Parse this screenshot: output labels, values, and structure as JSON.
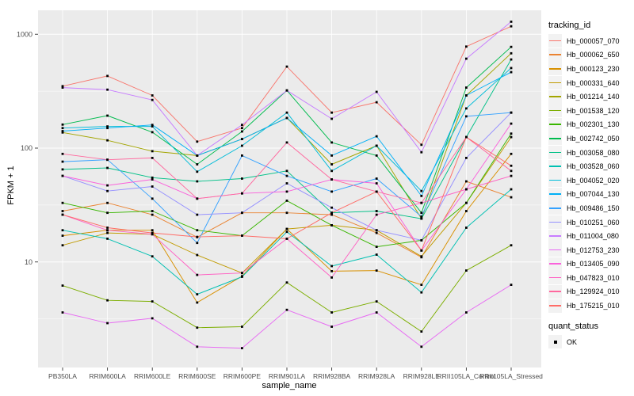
{
  "chart_data": {
    "type": "line",
    "title": "",
    "xlabel": "sample_name",
    "ylabel": "FPKM + 1",
    "y_scale": "log10",
    "y_ticks": [
      10,
      100,
      1000
    ],
    "y_minor_ticks": [
      3.162,
      31.62,
      316.2
    ],
    "ylim": [
      1.15,
      1650
    ],
    "grid": true,
    "legend_position": "right",
    "point_marker": "black-square",
    "categories": [
      "PB350LA",
      "RRIM600LA",
      "RRIM600LE",
      "RRIM600SE",
      "RRIM600PE",
      "RRIM901LA",
      "RRIM928BA",
      "RRIM928LA",
      "RRIM928LE",
      "RRII105LA_Control",
      "RRII105LA_Stressed"
    ],
    "series": [
      {
        "name": "Hb_000057_070",
        "color": "#F8766D",
        "values": [
          350,
          430,
          290,
          114,
          150,
          520,
          205,
          253,
          107,
          780,
          1175
        ]
      },
      {
        "name": "Hb_000062_650",
        "color": "#EA8331",
        "values": [
          28,
          33,
          26,
          16.5,
          27,
          27,
          26,
          18,
          11,
          51,
          37
        ]
      },
      {
        "name": "Hb_000123_230",
        "color": "#D89000",
        "values": [
          17,
          19,
          19,
          4.4,
          7.5,
          19.5,
          8.3,
          8.4,
          6.3,
          28,
          89
        ]
      },
      {
        "name": "Hb_000331_640",
        "color": "#C09B00",
        "values": [
          14,
          18,
          17.5,
          11.5,
          8,
          19.5,
          21,
          19,
          11.2,
          33,
          125
        ]
      },
      {
        "name": "Hb_001214_140",
        "color": "#A3A500",
        "values": [
          137,
          117,
          94,
          86,
          120,
          184,
          72,
          105,
          24,
          290,
          680
        ]
      },
      {
        "name": "Hb_001538_120",
        "color": "#7CAE00",
        "values": [
          6.2,
          4.6,
          4.5,
          2.65,
          2.7,
          6.6,
          3.6,
          4.5,
          2.45,
          8.4,
          14
        ]
      },
      {
        "name": "Hb_002301_130",
        "color": "#39B600",
        "values": [
          33,
          27,
          28,
          19,
          17,
          34.5,
          21,
          13.6,
          15.5,
          33,
          134
        ]
      },
      {
        "name": "Hb_002742_050",
        "color": "#00BB4E",
        "values": [
          161,
          193,
          138,
          72,
          140,
          321,
          112,
          86,
          27,
          340,
          775
        ]
      },
      {
        "name": "Hb_003058_080",
        "color": "#00C087",
        "values": [
          65,
          67,
          55,
          51,
          54,
          63,
          27,
          28,
          24,
          125,
          600
        ]
      },
      {
        "name": "Hb_003528_060",
        "color": "#00C0B2",
        "values": [
          19,
          16,
          11.2,
          5.2,
          7.4,
          18.4,
          9.2,
          11.6,
          5.4,
          20,
          43.5
        ]
      },
      {
        "name": "Hb_004052_020",
        "color": "#00BCD8",
        "values": [
          150,
          155,
          155,
          62,
          105,
          205,
          63,
          105,
          42,
          223,
          505
        ]
      },
      {
        "name": "Hb_007044_130",
        "color": "#00B0F6",
        "values": [
          141,
          150,
          160,
          86,
          120,
          184,
          86,
          127,
          38,
          290,
          465
        ]
      },
      {
        "name": "Hb_009486_150",
        "color": "#35A2FF",
        "values": [
          76,
          79,
          36,
          14.7,
          86,
          57,
          41.5,
          54,
          25,
          190,
          205
        ]
      },
      {
        "name": "Hb_010251_060",
        "color": "#9590FF",
        "values": [
          57,
          42,
          46,
          26,
          27,
          49,
          30,
          19,
          15.5,
          82,
          205
        ]
      },
      {
        "name": "Hb_011004_080",
        "color": "#C77CFF",
        "values": [
          340,
          326,
          265,
          86,
          160,
          321,
          181,
          312,
          92,
          610,
          1290
        ]
      },
      {
        "name": "Hb_012753_230",
        "color": "#E76BF3",
        "values": [
          3.6,
          2.9,
          3.2,
          1.8,
          1.75,
          3.8,
          2.7,
          3.6,
          1.8,
          3.6,
          6.3
        ]
      },
      {
        "name": "Hb_013405_090",
        "color": "#FA62DB",
        "values": [
          57,
          47,
          53,
          36,
          40,
          41.5,
          53,
          49,
          12.6,
          43.5,
          164
        ]
      },
      {
        "name": "Hb_047823_010",
        "color": "#FF61C3",
        "values": [
          26,
          19,
          17.5,
          7.7,
          8,
          16,
          7.3,
          26,
          33,
          43.5,
          57
        ]
      },
      {
        "name": "Hb_129924_010",
        "color": "#FF689E",
        "values": [
          89,
          79,
          82,
          36,
          40,
          112,
          53,
          41.5,
          33,
          125,
          63
        ]
      },
      {
        "name": "Hb_175215_010",
        "color": "#FF6C67",
        "values": [
          26,
          20,
          18,
          16.6,
          17,
          16,
          27,
          41.5,
          12.6,
          125,
          70
        ]
      }
    ],
    "legend": {
      "tracking_title": "tracking_id",
      "quant_title": "quant_status",
      "quant_items": [
        {
          "label": "OK",
          "marker": "black-square"
        }
      ]
    }
  },
  "colors": {
    "figure_bg": "#FFFFFF",
    "panel_bg": "#EBEBEB",
    "grid_major": "#FFFFFF",
    "grid_minor": "#FFFFFF",
    "tick_mark": "#333333",
    "tick_label": "#4D4D4D",
    "axis_title": "#000000",
    "legend_key_bg": "#F2F2F2",
    "point": "#000000"
  }
}
